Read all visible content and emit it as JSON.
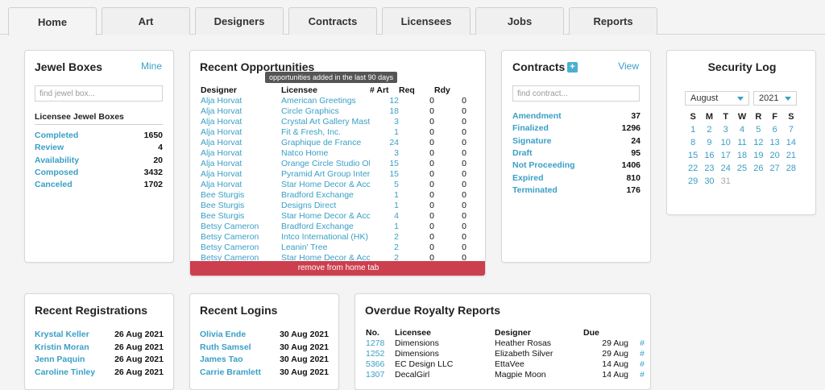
{
  "tabs": [
    "Home",
    "Art",
    "Designers",
    "Contracts",
    "Licensees",
    "Jobs",
    "Reports"
  ],
  "jewel": {
    "title": "Jewel Boxes",
    "link": "Mine",
    "placeholder": "find jewel box...",
    "subtitle": "Licensee Jewel Boxes",
    "rows": [
      {
        "label": "Completed",
        "value": "1650"
      },
      {
        "label": "Review",
        "value": "4"
      },
      {
        "label": "Availability",
        "value": "20"
      },
      {
        "label": "Composed",
        "value": "3432"
      },
      {
        "label": "Canceled",
        "value": "1702"
      }
    ]
  },
  "opps": {
    "title": "Recent Opportunities",
    "tooltip": "opportunities added in the last 90 days",
    "headers": [
      "Designer",
      "Licensee",
      "# Art",
      "Req",
      "Rdy"
    ],
    "rows": [
      [
        "Alja Horvat",
        "American Greetings",
        "12",
        "0",
        "0"
      ],
      [
        "Alja Horvat",
        "Circle Graphics",
        "18",
        "0",
        "0"
      ],
      [
        "Alja Horvat",
        "Crystal Art Gallery Maste",
        "3",
        "0",
        "0"
      ],
      [
        "Alja Horvat",
        "Fit & Fresh, Inc.",
        "1",
        "0",
        "0"
      ],
      [
        "Alja Horvat",
        "Graphique de France",
        "24",
        "0",
        "0"
      ],
      [
        "Alja Horvat",
        "Natco Home",
        "3",
        "0",
        "0"
      ],
      [
        "Alja Horvat",
        "Orange Circle Studio Oh",
        "15",
        "0",
        "0"
      ],
      [
        "Alja Horvat",
        "Pyramid Art Group Intern",
        "15",
        "0",
        "0"
      ],
      [
        "Alja Horvat",
        "Star Home Decor & Acce",
        "5",
        "0",
        "0"
      ],
      [
        "Bee Sturgis",
        "Bradford Exchange",
        "1",
        "0",
        "0"
      ],
      [
        "Bee Sturgis",
        "Designs Direct",
        "1",
        "0",
        "0"
      ],
      [
        "Bee Sturgis",
        "Star Home Decor & Acce",
        "4",
        "0",
        "0"
      ],
      [
        "Betsy Cameron",
        "Bradford Exchange",
        "1",
        "0",
        "0"
      ],
      [
        "Betsy Cameron",
        "Intco International (HK) C",
        "2",
        "0",
        "0"
      ],
      [
        "Betsy Cameron",
        "Leanin' Tree",
        "2",
        "0",
        "0"
      ],
      [
        "Betsy Cameron",
        "Star Home Decor & Acce",
        "2",
        "0",
        "0"
      ]
    ],
    "remove": "remove from home tab"
  },
  "contracts": {
    "title": "Contracts",
    "plus": "+",
    "link": "View",
    "placeholder": "find contract...",
    "rows": [
      {
        "label": "Amendment",
        "value": "37"
      },
      {
        "label": "Finalized",
        "value": "1296"
      },
      {
        "label": "Signature",
        "value": "24"
      },
      {
        "label": "Draft",
        "value": "95"
      },
      {
        "label": "Not Proceeding",
        "value": "1406"
      },
      {
        "label": "Expired",
        "value": "810"
      },
      {
        "label": "Terminated",
        "value": "176"
      }
    ]
  },
  "security": {
    "title": "Security Log",
    "month": "August",
    "year": "2021",
    "days": [
      "S",
      "M",
      "T",
      "W",
      "R",
      "F",
      "S"
    ],
    "weeks": [
      [
        "1",
        "2",
        "3",
        "4",
        "5",
        "6",
        "7"
      ],
      [
        "8",
        "9",
        "10",
        "11",
        "12",
        "13",
        "14"
      ],
      [
        "15",
        "16",
        "17",
        "18",
        "19",
        "20",
        "21"
      ],
      [
        "22",
        "23",
        "24",
        "25",
        "26",
        "27",
        "28"
      ],
      [
        "29",
        "30",
        "31",
        "",
        "",
        "",
        ""
      ]
    ]
  },
  "registrations": {
    "title": "Recent Registrations",
    "rows": [
      {
        "name": "Krystal Keller",
        "date": "26 Aug 2021"
      },
      {
        "name": "Kristin Moran",
        "date": "26 Aug 2021"
      },
      {
        "name": "Jenn Paquin",
        "date": "26 Aug 2021"
      },
      {
        "name": "Caroline Tinley",
        "date": "26 Aug 2021"
      }
    ]
  },
  "logins": {
    "title": "Recent Logins",
    "rows": [
      {
        "name": "Olivia Ende",
        "date": "30 Aug 2021"
      },
      {
        "name": "Ruth Samsel",
        "date": "30 Aug 2021"
      },
      {
        "name": "James Tao",
        "date": "30 Aug 2021"
      },
      {
        "name": "Carrie Bramlett",
        "date": "30 Aug 2021"
      }
    ]
  },
  "royalty": {
    "title": "Overdue Royalty Reports",
    "headers": [
      "No.",
      "Licensee",
      "Designer",
      "Due"
    ],
    "rows": [
      {
        "no": "1278",
        "licensee": "Dimensions",
        "designer": "Heather Rosas",
        "due": "29 Aug",
        "mark": "#"
      },
      {
        "no": "1252",
        "licensee": "Dimensions",
        "designer": "Elizabeth Silver",
        "due": "29 Aug",
        "mark": "#"
      },
      {
        "no": "5366",
        "licensee": "EC Design LLC",
        "designer": "EttaVee",
        "due": "14 Aug",
        "mark": "#"
      },
      {
        "no": "1307",
        "licensee": "DecalGirl",
        "designer": "Magpie Moon",
        "due": "14 Aug",
        "mark": "#"
      }
    ]
  }
}
